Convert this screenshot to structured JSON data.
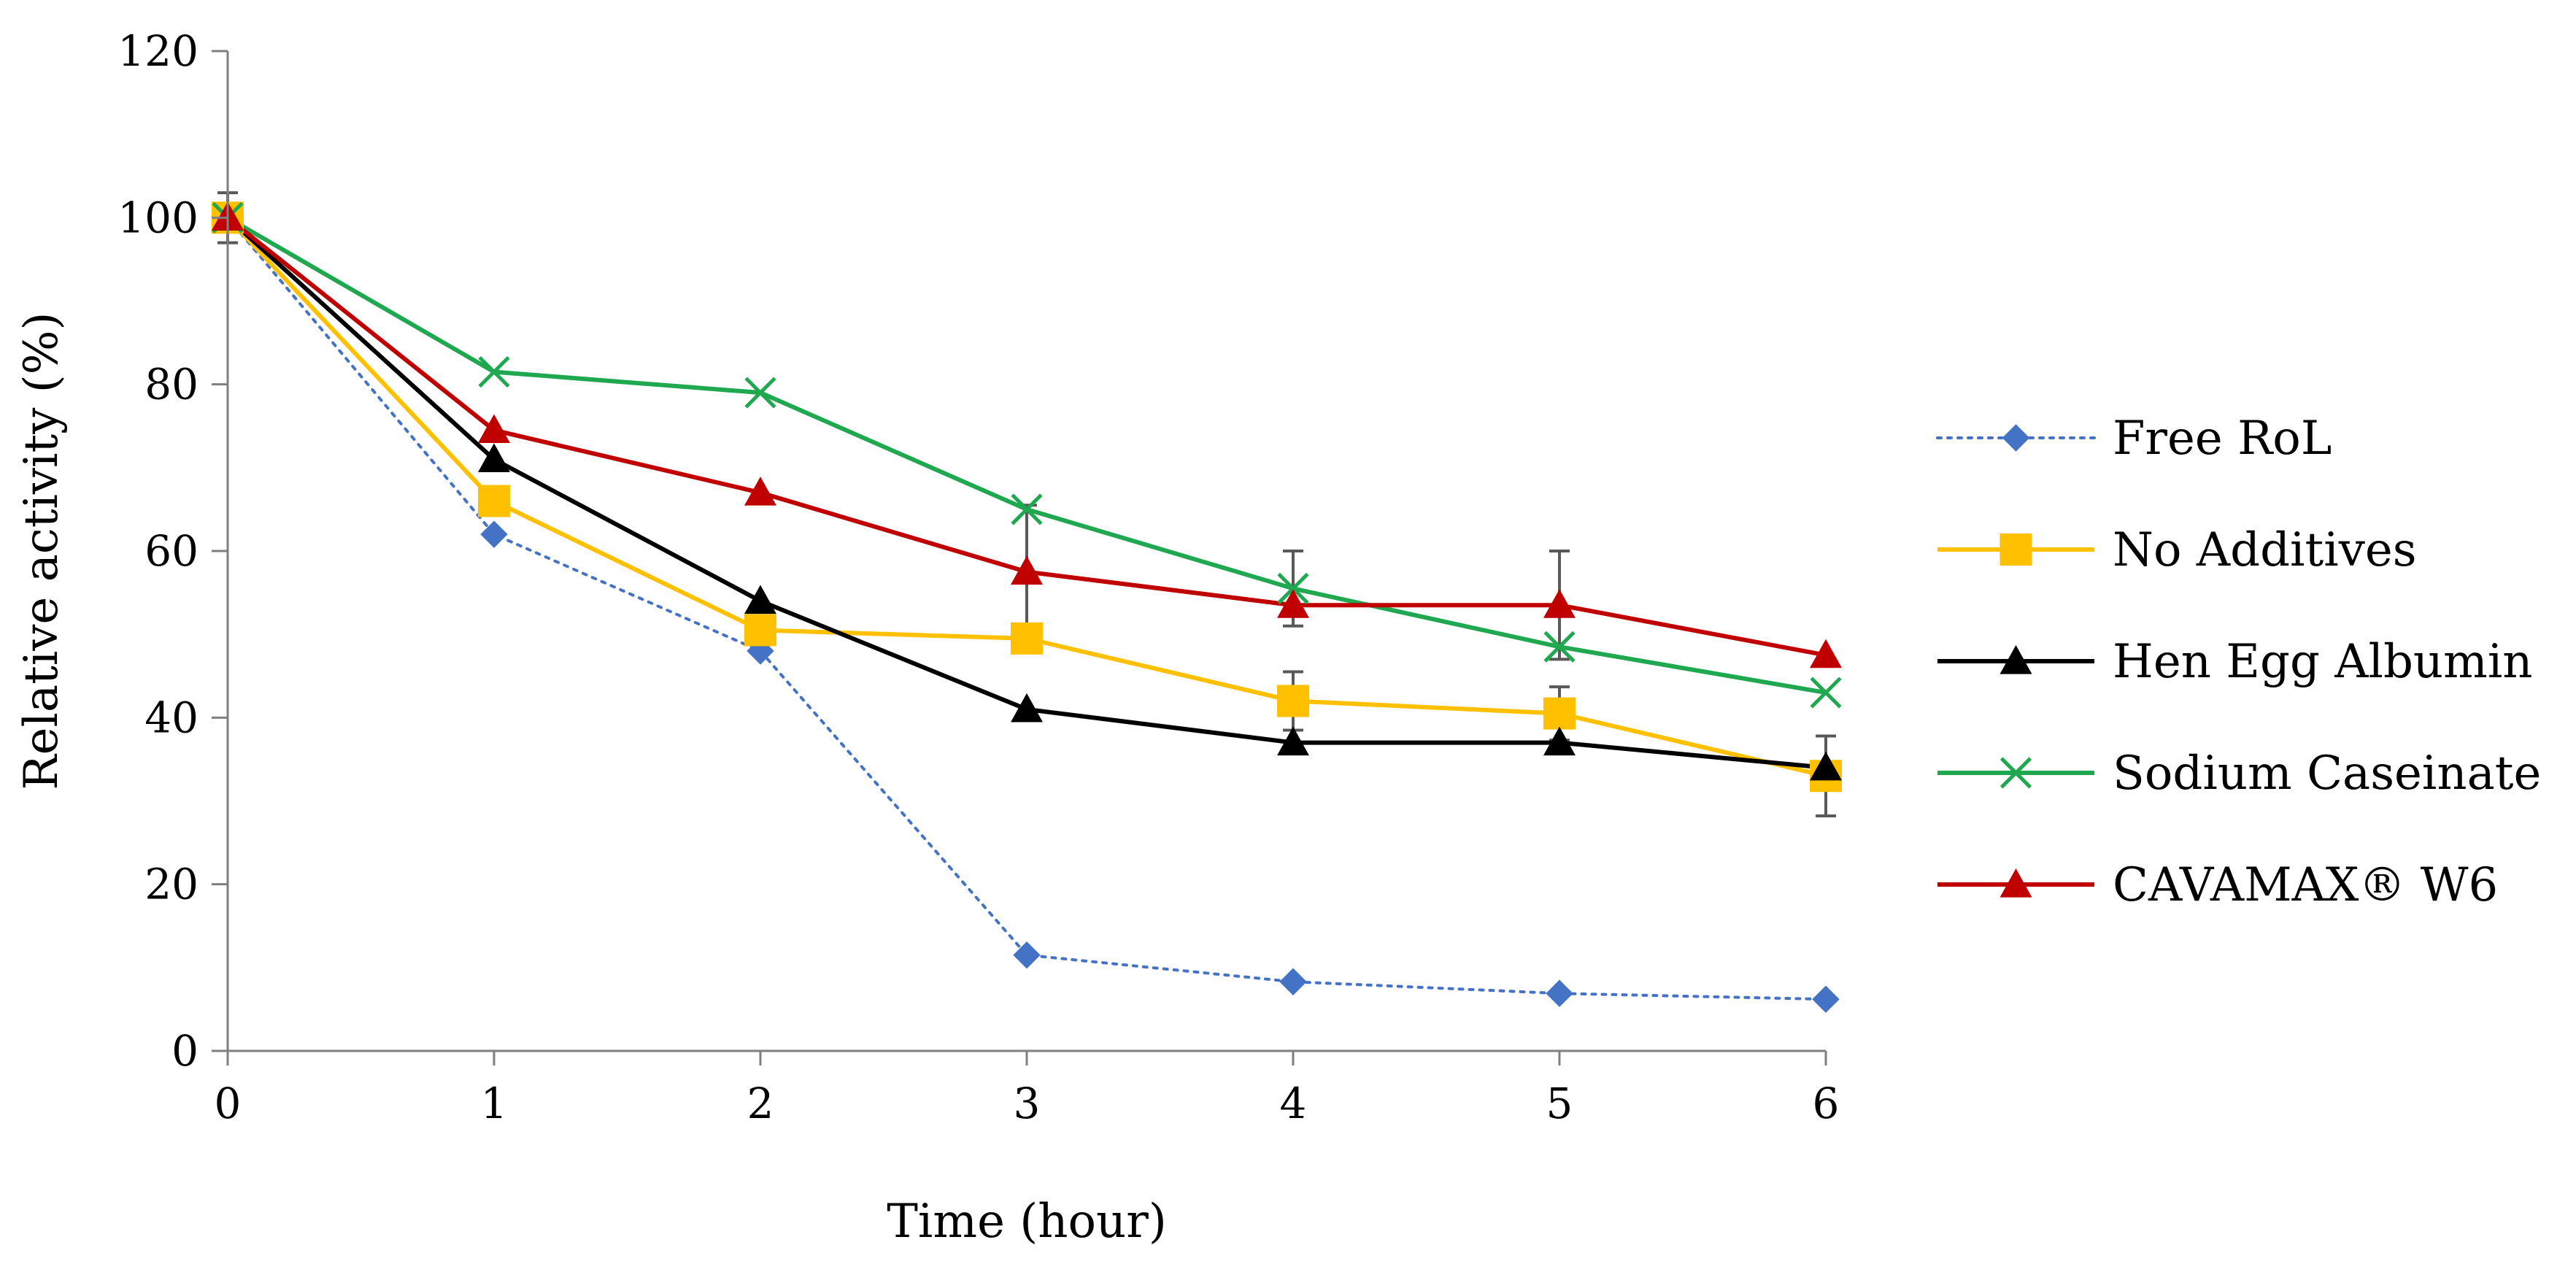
{
  "chart_data": {
    "type": "line",
    "title": "",
    "xlabel": "Time (hour)",
    "ylabel": "Relative activity (%)",
    "x": [
      0,
      1,
      2,
      3,
      4,
      5,
      6
    ],
    "xlim": [
      0,
      6
    ],
    "ylim": [
      0,
      120
    ],
    "yticks": [
      0,
      20,
      40,
      60,
      80,
      100,
      120
    ],
    "xticks": [
      0,
      1,
      2,
      3,
      4,
      5,
      6
    ],
    "grid": false,
    "legend_position": "right",
    "series": [
      {
        "name": "Free RoL",
        "values": [
          100,
          62,
          48,
          11.5,
          8.3,
          6.9,
          6.2
        ],
        "errors": [
          0,
          0,
          0,
          0,
          0,
          0,
          0
        ],
        "color": "#4472C4",
        "marker": "diamond",
        "line_style": "dotted"
      },
      {
        "name": "No Additives",
        "values": [
          100,
          66,
          50.5,
          49.5,
          42,
          40.5,
          33
        ],
        "errors": [
          0,
          0,
          0,
          0,
          3.5,
          3.2,
          4.8
        ],
        "color": "#FFC000",
        "marker": "square",
        "line_style": "solid"
      },
      {
        "name": "Hen Egg Albumin",
        "values": [
          100,
          71,
          54,
          41,
          37,
          37,
          34
        ],
        "errors": [
          0,
          0,
          0,
          0,
          0,
          0,
          0
        ],
        "color": "#000000",
        "marker": "triangle",
        "line_style": "solid"
      },
      {
        "name": "Sodium Caseinate",
        "values": [
          100,
          81.5,
          79,
          65,
          55.5,
          48.5,
          43
        ],
        "errors": [
          0,
          0,
          0,
          0,
          4.5,
          0,
          0
        ],
        "color": "#1FA84F",
        "marker": "x",
        "line_style": "solid"
      },
      {
        "name": "CAVAMAX® W6",
        "values": [
          100,
          74.5,
          67,
          57.5,
          53.5,
          53.5,
          47.5
        ],
        "errors": [
          3,
          0,
          0,
          8,
          0,
          6.5,
          0
        ],
        "color": "#C00000",
        "marker": "triangle",
        "line_style": "solid"
      }
    ]
  }
}
